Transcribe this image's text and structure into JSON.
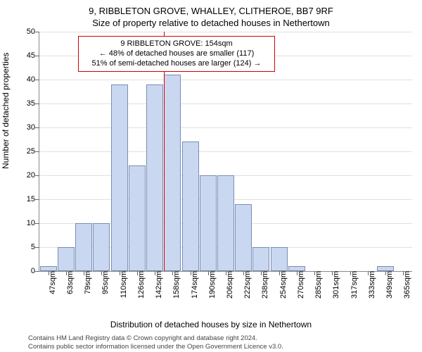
{
  "title_line1": "9, RIBBLETON GROVE, WHALLEY, CLITHEROE, BB7 9RF",
  "title_line2": "Size of property relative to detached houses in Nethertown",
  "ylabel": "Number of detached properties",
  "xlabel": "Distribution of detached houses by size in Nethertown",
  "footnote_line1": "Contains HM Land Registry data © Crown copyright and database right 2024.",
  "footnote_line2": "Contains public sector information licensed under the Open Government Licence v3.0.",
  "chart": {
    "type": "histogram",
    "ylim": [
      0,
      50
    ],
    "ytick_step": 5,
    "bar_fill": "#c9d8f0",
    "bar_stroke": "#7a8db5",
    "grid_color": "#e0e0e0",
    "background_color": "#ffffff",
    "marker_color": "#d00000",
    "marker_value_index": 7,
    "callout": {
      "line1": "9 RIBBLETON GROVE: 154sqm",
      "line2": "← 48% of detached houses are smaller (117)",
      "line3": "51% of semi-detached houses are larger (124) →"
    },
    "x_categories": [
      "47sqm",
      "63sqm",
      "79sqm",
      "95sqm",
      "110sqm",
      "126sqm",
      "142sqm",
      "158sqm",
      "174sqm",
      "190sqm",
      "206sqm",
      "222sqm",
      "238sqm",
      "254sqm",
      "270sqm",
      "285sqm",
      "301sqm",
      "317sqm",
      "333sqm",
      "349sqm",
      "365sqm"
    ],
    "values": [
      1,
      5,
      10,
      10,
      39,
      22,
      39,
      41,
      27,
      20,
      20,
      14,
      5,
      5,
      1,
      0,
      0,
      0,
      0,
      1,
      0
    ]
  }
}
